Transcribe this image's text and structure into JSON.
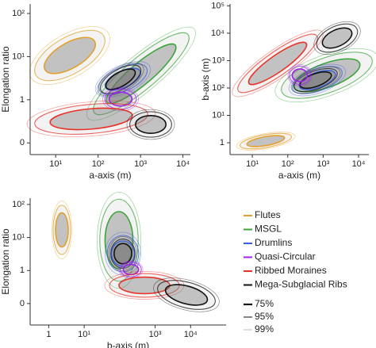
{
  "chart_data": [
    {
      "type": "contour",
      "xlabel": "a-axis (m)",
      "ylabel": "Elongation ratio",
      "xscale": "log",
      "yscale": "symlog",
      "xlim": [
        2.5,
        15000
      ],
      "xticks": [
        {
          "value": 10,
          "label": "10¹"
        },
        {
          "value": 100,
          "label": "10²"
        },
        {
          "value": 1000,
          "label": "10³"
        },
        {
          "value": 10000,
          "label": "10⁴"
        }
      ],
      "ylim": [
        -0.27,
        166
      ],
      "yticks": [
        0,
        1,
        {
          "value": 10,
          "label": "10¹"
        },
        {
          "value": 100,
          "label": "10²"
        }
      ]
    },
    {
      "type": "contour",
      "xlabel": "a-axis (m)",
      "ylabel": "b-axis (m)",
      "xscale": "log",
      "yscale": "log",
      "xlim": [
        2.35,
        19500
      ],
      "xticks": [
        {
          "value": 10,
          "label": "10¹"
        },
        {
          "value": 100,
          "label": "10²"
        },
        {
          "value": 1000,
          "label": "10³"
        },
        {
          "value": 10000,
          "label": "10⁴"
        }
      ],
      "ylim": [
        0.37,
        117000
      ],
      "yticks": [
        1,
        {
          "value": 10,
          "label": "10¹"
        },
        {
          "value": 100,
          "label": "10²"
        },
        {
          "value": 1000,
          "label": "10³"
        },
        {
          "value": 10000,
          "label": "10⁴"
        },
        {
          "value": 100000,
          "label": "10⁵"
        }
      ]
    },
    {
      "type": "contour",
      "xlabel": "b-axis (m)",
      "ylabel": "Elongation ratio",
      "xscale": "log",
      "yscale": "symlog",
      "xlim": [
        0.3,
        100000
      ],
      "xticks": [
        1,
        {
          "value": 10,
          "label": "10¹"
        },
        {
          "value": 1000,
          "label": "10³"
        },
        {
          "value": 10000,
          "label": "10⁴"
        }
      ],
      "ylim": [
        -0.65,
        155
      ],
      "yticks": [
        0,
        1,
        {
          "value": 10,
          "label": "10¹"
        },
        {
          "value": 100,
          "label": "10²"
        }
      ]
    }
  ],
  "legend": {
    "series": [
      {
        "name": "Flutes",
        "color": "#e3a02a"
      },
      {
        "name": "MSGL",
        "color": "#3aa63a"
      },
      {
        "name": "Drumlins",
        "color": "#3b5fd9"
      },
      {
        "name": "Quasi-Circular",
        "color": "#a020f0"
      },
      {
        "name": "Ribbed Moraines",
        "color": "#e8322a"
      },
      {
        "name": "Mega-Subglacial Ribs",
        "color": "#111111"
      }
    ],
    "levels": [
      {
        "name": "75%",
        "color": "#111111"
      },
      {
        "name": "95%",
        "color": "#666666"
      },
      {
        "name": "99%",
        "color": "#bbbbbb"
      }
    ]
  }
}
